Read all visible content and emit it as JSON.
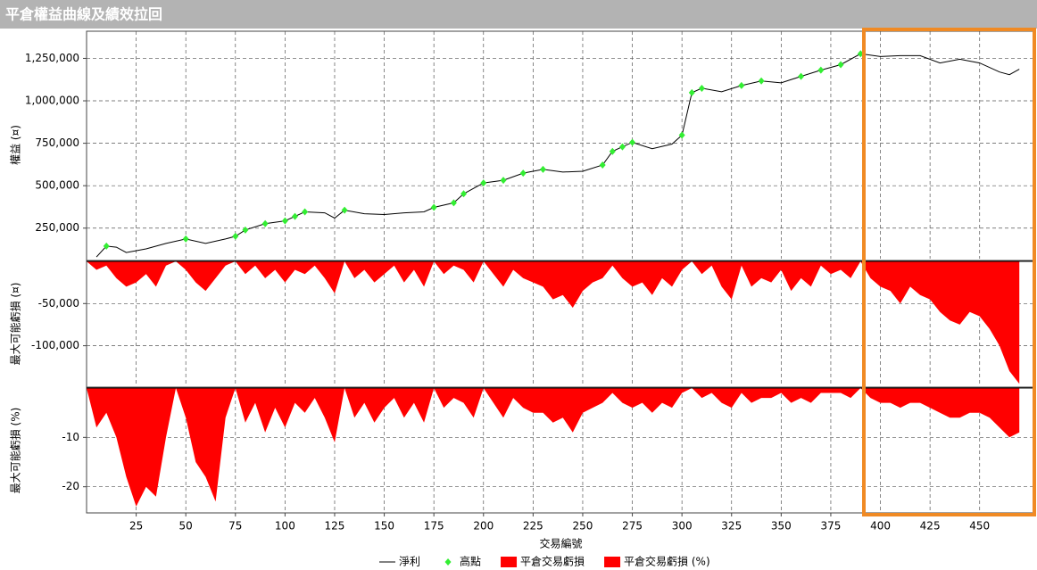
{
  "title": "平倉權益曲線及績效拉回",
  "chart_data": [
    {
      "type": "line",
      "ylabel": "權益 (¤)",
      "xlim": [
        0,
        478
      ],
      "ylim": [
        70000,
        1410000
      ],
      "yticks": [
        {
          "value": 250000,
          "label": "250,000"
        },
        {
          "value": 500000,
          "label": "500,000"
        },
        {
          "value": 750000,
          "label": "750,000"
        },
        {
          "value": 1000000,
          "label": "1,000,000"
        },
        {
          "value": 1250000,
          "label": "1,250,000"
        }
      ],
      "grid": true,
      "series": [
        {
          "name": "淨利",
          "color": "#000000",
          "x": [
            5,
            10,
            15,
            20,
            30,
            40,
            50,
            60,
            70,
            75,
            80,
            90,
            100,
            105,
            110,
            120,
            125,
            130,
            140,
            150,
            160,
            170,
            175,
            185,
            190,
            200,
            210,
            220,
            230,
            240,
            250,
            260,
            265,
            270,
            275,
            285,
            295,
            300,
            305,
            310,
            320,
            330,
            340,
            350,
            360,
            370,
            380,
            390,
            400,
            410,
            420,
            430,
            440,
            450,
            460,
            465,
            470
          ],
          "values": [
            80000,
            144000,
            138000,
            106000,
            128000,
            160000,
            186000,
            160000,
            186000,
            202000,
            239000,
            276000,
            293000,
            319000,
            346000,
            340000,
            309000,
            356000,
            335000,
            330000,
            340000,
            346000,
            372000,
            399000,
            452000,
            516000,
            532000,
            574000,
            596000,
            580000,
            585000,
            622000,
            702000,
            729000,
            755000,
            718000,
            745000,
            798000,
            1048000,
            1074000,
            1053000,
            1090000,
            1117000,
            1106000,
            1144000,
            1181000,
            1213000,
            1277000,
            1261000,
            1266000,
            1266000,
            1223000,
            1245000,
            1223000,
            1170000,
            1154000,
            1186000
          ]
        },
        {
          "name": "高點",
          "type": "scatter",
          "color": "#33ee33",
          "x": [
            10,
            50,
            75,
            80,
            90,
            100,
            105,
            110,
            130,
            175,
            185,
            190,
            200,
            210,
            220,
            230,
            260,
            265,
            270,
            275,
            300,
            305,
            310,
            330,
            340,
            360,
            370,
            380,
            390
          ],
          "values": [
            144000,
            186000,
            202000,
            239000,
            276000,
            293000,
            319000,
            346000,
            356000,
            372000,
            399000,
            452000,
            516000,
            532000,
            574000,
            596000,
            622000,
            702000,
            729000,
            755000,
            798000,
            1048000,
            1074000,
            1090000,
            1117000,
            1144000,
            1181000,
            1213000,
            1277000
          ]
        }
      ]
    },
    {
      "type": "area",
      "ylabel": "最大可能虧損 (¤)",
      "xlim": [
        0,
        478
      ],
      "ylim": [
        -148000,
        0
      ],
      "yticks": [
        {
          "value": -50000,
          "label": "-50,000"
        },
        {
          "value": -100000,
          "label": "-100,000"
        }
      ],
      "grid": true,
      "series": [
        {
          "name": "平倉交易虧損",
          "color": "#ff0000",
          "x": [
            0,
            5,
            10,
            15,
            20,
            25,
            30,
            35,
            40,
            45,
            50,
            55,
            60,
            65,
            70,
            75,
            80,
            85,
            90,
            95,
            100,
            105,
            110,
            115,
            120,
            125,
            130,
            135,
            140,
            145,
            150,
            155,
            160,
            165,
            170,
            175,
            180,
            185,
            190,
            195,
            200,
            205,
            210,
            215,
            220,
            225,
            230,
            235,
            240,
            245,
            250,
            255,
            260,
            265,
            270,
            275,
            280,
            285,
            290,
            295,
            300,
            305,
            310,
            315,
            320,
            325,
            330,
            335,
            340,
            345,
            350,
            355,
            360,
            365,
            370,
            375,
            380,
            385,
            390,
            395,
            400,
            405,
            410,
            415,
            420,
            425,
            430,
            435,
            440,
            445,
            450,
            455,
            460,
            465,
            470
          ],
          "values": [
            0,
            -10000,
            -5000,
            -20000,
            -30000,
            -25000,
            -15000,
            -30000,
            -5000,
            0,
            -10000,
            -25000,
            -35000,
            -20000,
            -5000,
            0,
            -15000,
            -5000,
            -20000,
            -10000,
            -25000,
            -10000,
            -15000,
            -5000,
            -20000,
            -38000,
            0,
            -20000,
            -10000,
            -25000,
            -15000,
            -5000,
            -25000,
            -10000,
            -30000,
            0,
            -15000,
            -5000,
            -10000,
            -25000,
            0,
            -15000,
            -30000,
            -10000,
            -20000,
            -25000,
            -30000,
            -45000,
            -40000,
            -55000,
            -35000,
            -25000,
            -20000,
            -5000,
            -20000,
            -30000,
            -25000,
            -40000,
            -20000,
            -30000,
            -10000,
            0,
            -15000,
            -5000,
            -30000,
            -45000,
            -5000,
            -30000,
            -20000,
            -25000,
            -10000,
            -35000,
            -20000,
            -30000,
            -5000,
            -15000,
            -10000,
            -20000,
            0,
            -20000,
            -30000,
            -35000,
            -50000,
            -30000,
            -40000,
            -45000,
            -60000,
            -70000,
            -75000,
            -60000,
            -65000,
            -80000,
            -100000,
            -130000,
            -145000
          ]
        }
      ]
    },
    {
      "type": "area",
      "ylabel": "最大可能虧損 (%)",
      "xlabel": "交易編號",
      "xlim": [
        0,
        478
      ],
      "xticks": [
        25,
        50,
        75,
        100,
        125,
        150,
        175,
        200,
        225,
        250,
        275,
        300,
        325,
        350,
        375,
        400,
        425,
        450
      ],
      "ylim": [
        -25.3,
        0
      ],
      "yticks": [
        -20,
        -10
      ],
      "grid": true,
      "series": [
        {
          "name": "平倉交易虧損 (%)",
          "color": "#ff0000",
          "x": [
            0,
            5,
            10,
            15,
            20,
            25,
            30,
            35,
            40,
            45,
            50,
            55,
            60,
            65,
            70,
            75,
            80,
            85,
            90,
            95,
            100,
            105,
            110,
            115,
            120,
            125,
            130,
            135,
            140,
            145,
            150,
            155,
            160,
            165,
            170,
            175,
            180,
            185,
            190,
            195,
            200,
            205,
            210,
            215,
            220,
            225,
            230,
            235,
            240,
            245,
            250,
            255,
            260,
            265,
            270,
            275,
            280,
            285,
            290,
            295,
            300,
            305,
            310,
            315,
            320,
            325,
            330,
            335,
            340,
            345,
            350,
            355,
            360,
            365,
            370,
            375,
            380,
            385,
            390,
            395,
            400,
            405,
            410,
            415,
            420,
            425,
            430,
            435,
            440,
            445,
            450,
            455,
            460,
            465,
            470
          ],
          "values": [
            0,
            -8,
            -5,
            -10,
            -18,
            -24,
            -20,
            -22,
            -10,
            0,
            -6,
            -15,
            -18,
            -23,
            -6,
            0,
            -7,
            -3,
            -9,
            -4,
            -8,
            -3,
            -5,
            -2,
            -6,
            -11,
            0,
            -6,
            -3,
            -7,
            -4,
            -2,
            -6,
            -3,
            -7,
            0,
            -4,
            -2,
            -3,
            -6,
            0,
            -3,
            -6,
            -2,
            -4,
            -5,
            -5,
            -7,
            -6,
            -9,
            -5,
            -4,
            -3,
            -1,
            -3,
            -4,
            -3,
            -5,
            -3,
            -4,
            -1,
            0,
            -2,
            -1,
            -3,
            -4,
            -1,
            -3,
            -2,
            -2,
            -1,
            -3,
            -2,
            -3,
            -1,
            -1,
            -1,
            -2,
            0,
            -2,
            -3,
            -3,
            -4,
            -3,
            -3,
            -4,
            -5,
            -6,
            -6,
            -5,
            -5,
            -6,
            -8,
            -10,
            -9
          ]
        }
      ]
    }
  ]
}
